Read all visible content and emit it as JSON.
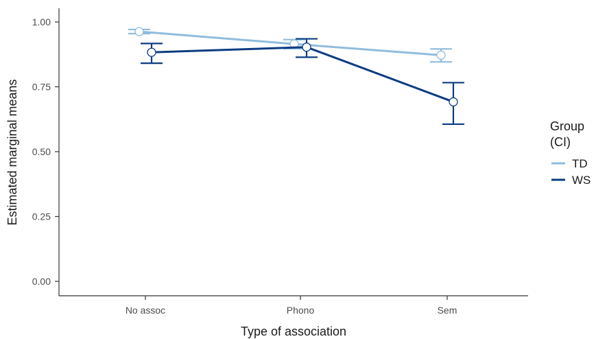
{
  "chart_data": {
    "type": "line",
    "title": "",
    "xlabel": "Type of association",
    "ylabel": "Estimated marginal means",
    "categories": [
      "No assoc",
      "Phono",
      "Sem"
    ],
    "ylim": [
      0,
      1.05
    ],
    "yticks": [
      0.0,
      0.25,
      0.5,
      0.75,
      1.0
    ],
    "ytick_labels": [
      "0.00",
      "0.25",
      "0.50",
      "0.75",
      "1.00"
    ],
    "grid": false,
    "legend": {
      "title_line1": "Group",
      "title_line2": "(CI)",
      "placement": "right"
    },
    "series": [
      {
        "name": "TD",
        "color": "#8fbcdc",
        "values": [
          0.963,
          0.915,
          0.872
        ],
        "lower": [
          0.955,
          0.897,
          0.846
        ],
        "upper": [
          0.971,
          0.932,
          0.896
        ]
      },
      {
        "name": "WS",
        "color": "#0b3c83",
        "values": [
          0.883,
          0.903,
          0.692
        ],
        "lower": [
          0.841,
          0.864,
          0.606
        ],
        "upper": [
          0.917,
          0.935,
          0.766
        ]
      }
    ]
  }
}
